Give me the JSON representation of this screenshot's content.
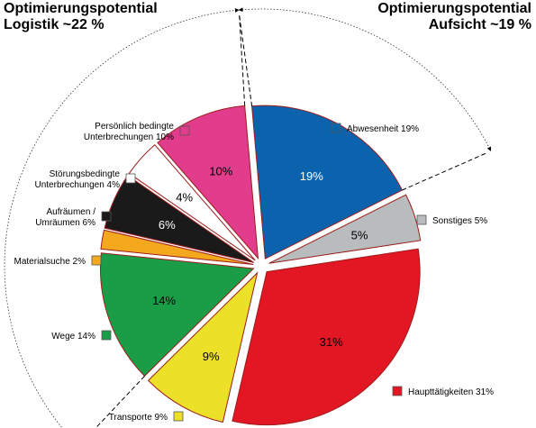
{
  "chart_data": {
    "type": "pie",
    "style": "exploded",
    "slices": [
      {
        "key": "abwesenheit",
        "legend": "Abwesenheit 19%",
        "value": 19,
        "label": "19%",
        "color": "#0b63ad",
        "label_color": "#ffffff"
      },
      {
        "key": "sonstiges",
        "legend": "Sonstiges 5%",
        "value": 5,
        "label": "5%",
        "color": "#b9bcbd",
        "label_color": "#000000"
      },
      {
        "key": "haupttaetigkeiten",
        "legend": "Haupttätigkeiten 31%",
        "value": 31,
        "label": "31%",
        "color": "#e31724",
        "label_color": "#000000"
      },
      {
        "key": "transporte",
        "legend": "Transporte 9%",
        "value": 9,
        "label": "9%",
        "color": "#ede028",
        "label_color": "#000000"
      },
      {
        "key": "wege",
        "legend": "Wege 14%",
        "value": 14,
        "label": "14%",
        "color": "#1b9d48",
        "label_color": "#000000"
      },
      {
        "key": "materialsuche",
        "legend": "Materialsuche 2%",
        "value": 2,
        "label": "",
        "color": "#f4a81d",
        "label_color": "#000000"
      },
      {
        "key": "aufraeumen",
        "legend": [
          "Aufräumen /",
          "Umräumen 6%"
        ],
        "value": 6,
        "label": "6%",
        "color": "#1a1a1a",
        "label_color": "#ffffff"
      },
      {
        "key": "stoerungen",
        "legend": [
          "Störungsbedingte",
          "Unterbrechungen 4%"
        ],
        "value": 4,
        "label": "4%",
        "color": "#ffffff",
        "label_color": "#000000"
      },
      {
        "key": "persoenlich",
        "legend": [
          "Persönlich bedingte",
          "Unterbrechungen 10%"
        ],
        "value": 10,
        "label": "10%",
        "color": "#e23d8c",
        "label_color": "#000000"
      }
    ],
    "callouts": [
      {
        "key": "logistik",
        "lines": [
          "Optimierungspotential",
          "Logistik ~22 %"
        ]
      },
      {
        "key": "aufsicht",
        "lines": [
          "Optimierungspotential",
          "Aufsicht ~19 %"
        ]
      }
    ],
    "border_color": "#9b1c1c"
  }
}
